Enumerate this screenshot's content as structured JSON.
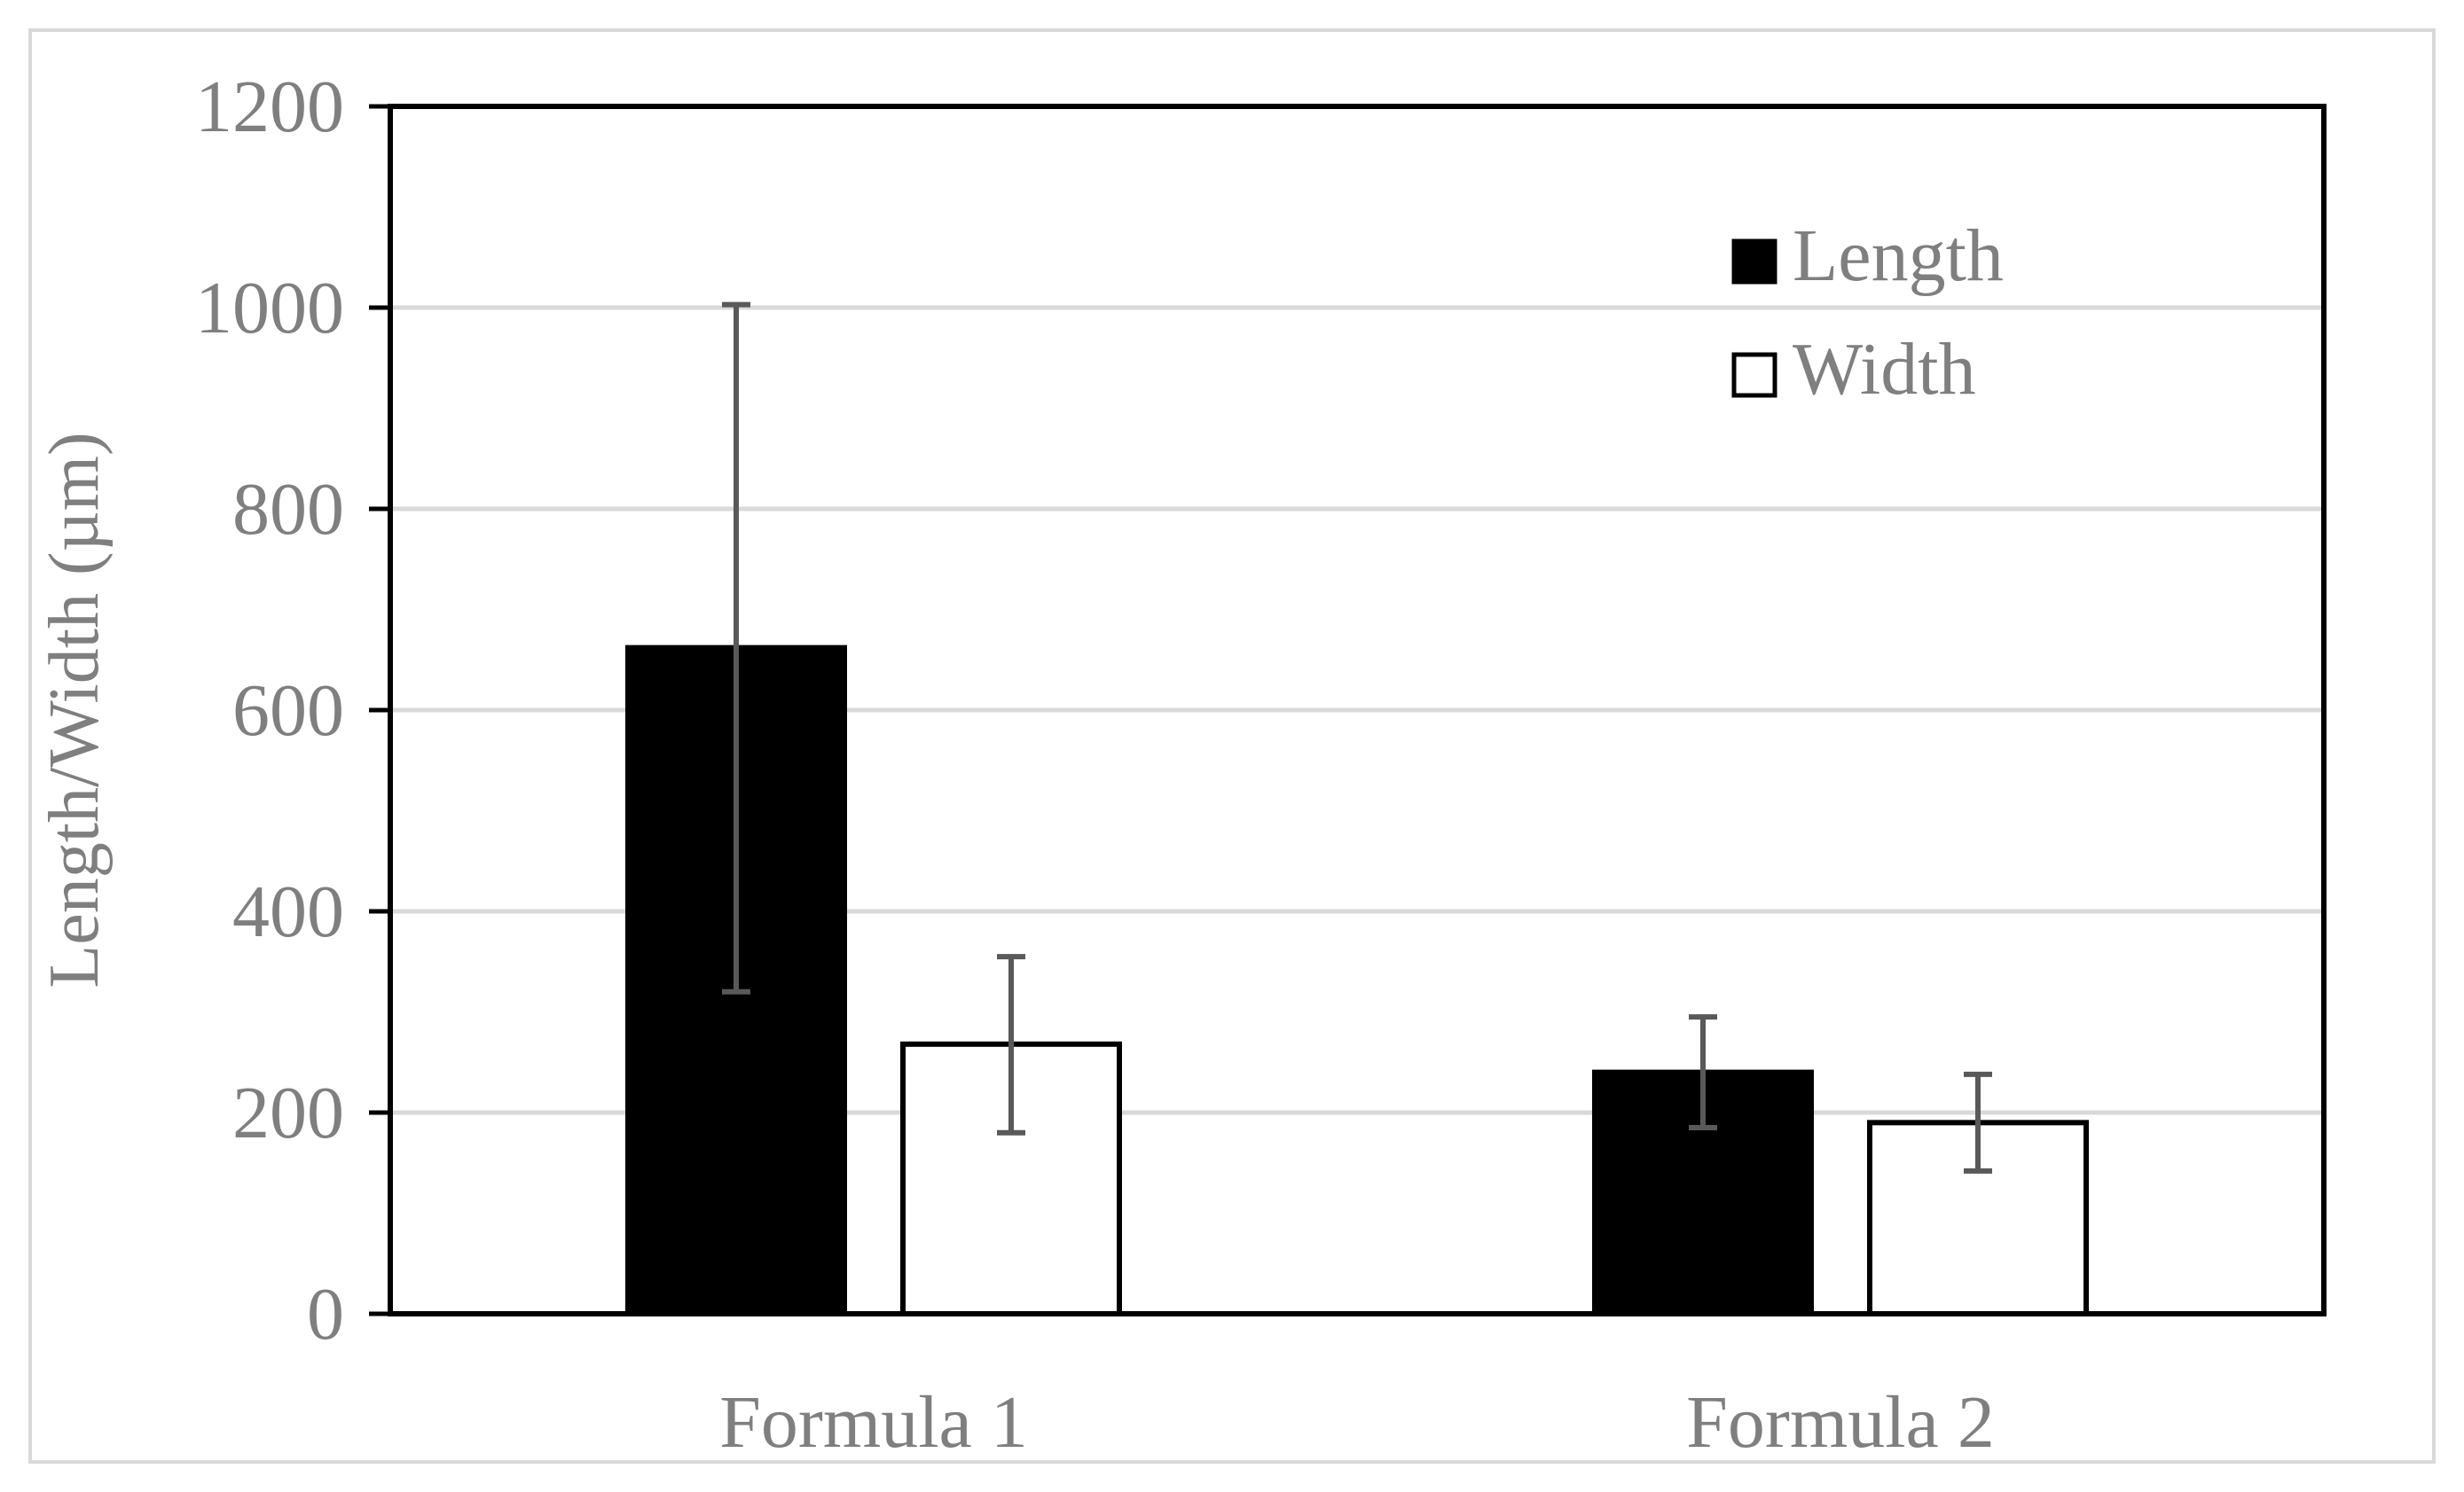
{
  "chart_data": {
    "type": "bar",
    "categories": [
      "Formula 1",
      "Formula 2"
    ],
    "series": [
      {
        "name": "Length",
        "values": [
          662,
          240
        ],
        "error_low": [
          320,
          185
        ],
        "error_high": [
          1003,
          295
        ],
        "color": "#000000"
      },
      {
        "name": "Width",
        "values": [
          268,
          190
        ],
        "error_low": [
          180,
          142
        ],
        "error_high": [
          355,
          238
        ],
        "color": "#ffffff"
      }
    ],
    "xlabel": "",
    "ylabel": "Length/Width (µm)",
    "ylim": [
      0,
      1200
    ],
    "yticks": [
      "0",
      "200",
      "400",
      "600",
      "800",
      "1000",
      "1200"
    ],
    "grid": true,
    "legend_position": "top-right",
    "colors": {
      "grid": "#d9d9d9",
      "text": "#7f7f7f",
      "error_bar": "#595959",
      "bar_outline": "#000000",
      "frame": "#d9d9d9"
    }
  }
}
